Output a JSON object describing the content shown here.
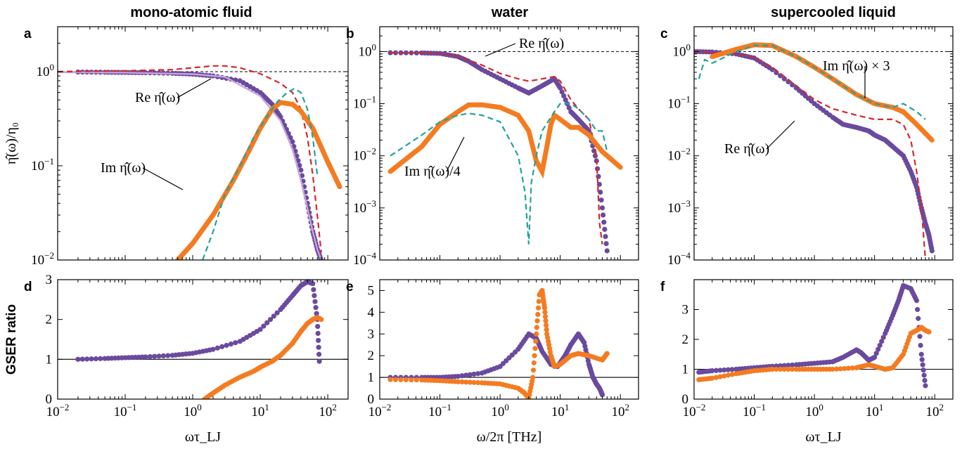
{
  "columns": {
    "a": "mono-atomic fluid",
    "b": "water",
    "c": "supercooled liquid"
  },
  "colors": {
    "re": "#6a4a9e",
    "im": "#f47b20",
    "re_dashed": "#d62728",
    "im_dashed": "#20a39e",
    "re_light": "#c9a6d8",
    "ref_line": "#000000"
  },
  "chart_data": [
    {
      "panel": "a",
      "type": "line",
      "xlog": true,
      "ylog": true,
      "xlim": [
        0.01,
        200
      ],
      "ylim": [
        0.01,
        3
      ],
      "ylabel": "η̂(ω)/η₀",
      "xticks": [
        "10^-2",
        "10^-1",
        "10^0",
        "10^1",
        "10^2"
      ],
      "yticks": [
        "10^-2",
        "10^-1",
        "10^0"
      ],
      "reference_line": {
        "y": 1,
        "style": "dashed"
      },
      "annotations": [
        "Re η̂(ω)",
        "Im η̂(ω)"
      ],
      "series": [
        {
          "key": "re_sim",
          "style": "dots",
          "color": "re",
          "x": [
            0.02,
            0.05,
            0.1,
            0.2,
            0.5,
            1,
            2,
            5,
            10,
            15,
            20,
            30,
            40,
            50,
            60,
            70,
            80
          ],
          "y": [
            0.99,
            0.985,
            0.98,
            0.975,
            0.96,
            0.94,
            0.9,
            0.8,
            0.6,
            0.45,
            0.33,
            0.18,
            0.09,
            0.04,
            0.02,
            0.013,
            0.01
          ]
        },
        {
          "key": "re_fit",
          "style": "line",
          "color": "re_light",
          "x": [
            0.01,
            0.1,
            1,
            3,
            10,
            20,
            30,
            40,
            50,
            60,
            70,
            80
          ],
          "y": [
            0.985,
            0.975,
            0.94,
            0.88,
            0.55,
            0.3,
            0.15,
            0.07,
            0.035,
            0.02,
            0.013,
            0.01
          ]
        },
        {
          "key": "re_dashed",
          "style": "dashed",
          "color": "re_dashed",
          "x": [
            0.01,
            0.1,
            0.5,
            1,
            2,
            3,
            5,
            10,
            20,
            30,
            40,
            50,
            60,
            70,
            80
          ],
          "y": [
            1.0,
            1.02,
            1.05,
            1.1,
            1.15,
            1.15,
            1.1,
            0.95,
            0.75,
            0.6,
            0.4,
            0.2,
            0.08,
            0.03,
            0.012
          ]
        },
        {
          "key": "im_sim",
          "style": "thick",
          "color": "im",
          "x": [
            0.6,
            1,
            2,
            4,
            7,
            10,
            15,
            20,
            30,
            40,
            60,
            100,
            150
          ],
          "y": [
            0.01,
            0.015,
            0.03,
            0.07,
            0.15,
            0.25,
            0.4,
            0.47,
            0.45,
            0.38,
            0.25,
            0.11,
            0.06
          ]
        },
        {
          "key": "im_dashed",
          "style": "dashed",
          "color": "im_dashed",
          "x": [
            1.4,
            2,
            3,
            5,
            8,
            12,
            18,
            25,
            32,
            40,
            50,
            60,
            70
          ],
          "y": [
            0.01,
            0.02,
            0.05,
            0.1,
            0.2,
            0.32,
            0.48,
            0.6,
            0.66,
            0.6,
            0.4,
            0.2,
            0.08
          ]
        }
      ]
    },
    {
      "panel": "b",
      "type": "line",
      "xlog": true,
      "ylog": true,
      "xlim": [
        0.01,
        200
      ],
      "ylim": [
        0.0001,
        3
      ],
      "xlabel": "ω/2π  [THz]",
      "xticks": [
        "10^-2",
        "10^-1",
        "10^0",
        "10^1",
        "10^2"
      ],
      "yticks": [
        "10^-4",
        "10^-3",
        "10^-2",
        "10^-1",
        "10^0"
      ],
      "reference_line": {
        "y": 1,
        "style": "dashed"
      },
      "annotations": [
        "Re η̂(ω)",
        "Im η̂(ω)/4"
      ],
      "series": [
        {
          "key": "re_sim",
          "style": "dots",
          "color": "re",
          "x": [
            0.015,
            0.05,
            0.1,
            0.2,
            0.3,
            0.5,
            1,
            2,
            3,
            5,
            8,
            10,
            15,
            20,
            30,
            40,
            50,
            60
          ],
          "y": [
            0.95,
            0.94,
            0.92,
            0.8,
            0.65,
            0.45,
            0.3,
            0.2,
            0.16,
            0.22,
            0.3,
            0.2,
            0.07,
            0.05,
            0.03,
            0.008,
            0.001,
            0.00015
          ]
        },
        {
          "key": "re_dashed",
          "style": "dashed",
          "color": "re_dashed",
          "x": [
            0.015,
            0.05,
            0.1,
            0.2,
            0.5,
            1,
            2,
            3,
            5,
            8,
            10,
            15,
            20,
            30,
            40,
            45,
            50
          ],
          "y": [
            0.95,
            0.94,
            0.92,
            0.82,
            0.55,
            0.38,
            0.3,
            0.27,
            0.3,
            0.33,
            0.27,
            0.12,
            0.08,
            0.05,
            0.01,
            0.0005,
            0.0002
          ]
        },
        {
          "key": "im_sim",
          "style": "thick",
          "color": "im",
          "x": [
            0.015,
            0.05,
            0.1,
            0.2,
            0.3,
            0.5,
            1,
            2,
            3,
            4,
            5,
            6,
            7,
            8,
            10,
            15,
            20,
            30,
            50,
            100
          ],
          "y": [
            0.005,
            0.015,
            0.04,
            0.07,
            0.095,
            0.095,
            0.085,
            0.06,
            0.03,
            0.008,
            0.005,
            0.015,
            0.04,
            0.06,
            0.05,
            0.035,
            0.035,
            0.025,
            0.012,
            0.006
          ]
        },
        {
          "key": "im_dashed",
          "style": "dashed",
          "color": "im_dashed",
          "x": [
            0.015,
            0.05,
            0.1,
            0.2,
            0.3,
            0.5,
            1,
            2,
            2.6,
            3,
            3.3,
            4,
            5,
            8,
            10,
            15,
            20,
            30,
            40,
            50,
            60
          ],
          "y": [
            0.01,
            0.025,
            0.045,
            0.06,
            0.065,
            0.06,
            0.045,
            0.01,
            0.002,
            0.0002,
            0.003,
            0.01,
            0.03,
            0.07,
            0.1,
            0.1,
            0.08,
            0.05,
            0.03,
            0.03,
            0.012
          ]
        }
      ]
    },
    {
      "panel": "c",
      "type": "line",
      "xlog": true,
      "ylog": true,
      "xlim": [
        0.01,
        200
      ],
      "ylim": [
        0.0001,
        3
      ],
      "xticks": [
        "10^-2",
        "10^-1",
        "10^0",
        "10^1",
        "10^2"
      ],
      "yticks": [
        "10^-4",
        "10^-3",
        "10^-2",
        "10^-1",
        "10^0"
      ],
      "reference_line": {
        "y": 1,
        "style": "dashed"
      },
      "annotations": [
        "Im η̂(ω) × 3",
        "Re η̂(ω)"
      ],
      "series": [
        {
          "key": "re_sim",
          "style": "dots",
          "color": "re",
          "x": [
            0.01,
            0.02,
            0.05,
            0.1,
            0.2,
            0.5,
            1,
            2,
            3,
            5,
            8,
            10,
            15,
            20,
            30,
            40,
            50,
            60,
            70,
            80,
            90
          ],
          "y": [
            1.0,
            0.98,
            0.9,
            0.75,
            0.45,
            0.2,
            0.1,
            0.055,
            0.04,
            0.035,
            0.03,
            0.025,
            0.02,
            0.015,
            0.01,
            0.005,
            0.0025,
            0.001,
            0.0005,
            0.0003,
            0.00015
          ]
        },
        {
          "key": "re_dashed",
          "style": "dashed",
          "color": "re_dashed",
          "x": [
            0.01,
            0.05,
            0.1,
            0.2,
            0.5,
            1,
            2,
            5,
            10,
            20,
            30,
            40,
            50,
            60,
            70
          ],
          "y": [
            1.0,
            0.9,
            0.78,
            0.5,
            0.22,
            0.12,
            0.08,
            0.06,
            0.05,
            0.05,
            0.04,
            0.02,
            0.005,
            0.001,
            0.0001
          ]
        },
        {
          "key": "im_sim",
          "style": "thick",
          "color": "im",
          "x": [
            0.02,
            0.05,
            0.1,
            0.2,
            0.5,
            1,
            2,
            5,
            10,
            20,
            30,
            50,
            90
          ],
          "y": [
            0.8,
            1.1,
            1.35,
            1.3,
            0.8,
            0.5,
            0.3,
            0.15,
            0.1,
            0.085,
            0.07,
            0.04,
            0.02
          ]
        },
        {
          "key": "im_dashed",
          "style": "dashed",
          "color": "im_dashed",
          "x": [
            0.012,
            0.015,
            0.02,
            0.05,
            0.1,
            0.2,
            0.5,
            1,
            2,
            5,
            10,
            20,
            30,
            50,
            70
          ],
          "y": [
            0.3,
            0.7,
            0.6,
            1.0,
            1.3,
            1.3,
            0.8,
            0.5,
            0.3,
            0.15,
            0.1,
            0.085,
            0.1,
            0.07,
            0.05
          ]
        }
      ]
    },
    {
      "panel": "d",
      "type": "scatter",
      "xlog": true,
      "xlim": [
        0.01,
        200
      ],
      "ylim": [
        0,
        3
      ],
      "ylabel": "GSER ratio",
      "xlabel": "ωτ_LJ",
      "xticks": [
        "10^-2",
        "10^-1",
        "10^0",
        "10^1",
        "10^2"
      ],
      "yticks": [
        "0",
        "1",
        "2",
        "3"
      ],
      "reference_line": {
        "y": 1,
        "style": "solid"
      },
      "series": [
        {
          "key": "re_sim",
          "color": "re",
          "x": [
            0.02,
            0.05,
            0.1,
            0.2,
            0.5,
            1,
            2,
            5,
            10,
            20,
            30,
            40,
            50,
            60,
            70,
            75
          ],
          "y": [
            1.0,
            1.02,
            1.04,
            1.06,
            1.1,
            1.15,
            1.25,
            1.45,
            1.75,
            2.25,
            2.6,
            2.85,
            2.95,
            2.9,
            2.0,
            0.95
          ]
        },
        {
          "key": "im_sim",
          "color": "im",
          "x": [
            1.5,
            2,
            3,
            5,
            8,
            10,
            15,
            20,
            30,
            40,
            50,
            60,
            70,
            80
          ],
          "y": [
            0.0,
            0.15,
            0.35,
            0.55,
            0.7,
            0.8,
            0.95,
            1.1,
            1.4,
            1.7,
            1.9,
            2.0,
            2.05,
            2.0
          ]
        }
      ]
    },
    {
      "panel": "e",
      "type": "scatter",
      "xlog": true,
      "xlim": [
        0.01,
        200
      ],
      "ylim": [
        0,
        5.5
      ],
      "xlabel": "ω/2π  [THz]",
      "xticks": [
        "10^-2",
        "10^-1",
        "10^0",
        "10^1",
        "10^2"
      ],
      "yticks": [
        "0",
        "1",
        "2",
        "3",
        "4",
        "5"
      ],
      "reference_line": {
        "y": 1,
        "style": "solid"
      },
      "series": [
        {
          "key": "re_sim",
          "color": "re",
          "x": [
            0.015,
            0.05,
            0.1,
            0.2,
            0.5,
            1,
            2,
            3,
            4,
            5,
            7,
            9,
            12,
            15,
            20,
            25,
            30,
            35,
            40,
            45,
            50
          ],
          "y": [
            1.0,
            1.0,
            1.0,
            1.05,
            1.2,
            1.5,
            2.3,
            3.0,
            2.8,
            2.2,
            1.6,
            1.5,
            2.0,
            2.5,
            3.0,
            2.6,
            1.6,
            1.0,
            0.7,
            0.5,
            0.2
          ]
        },
        {
          "key": "im_sim",
          "color": "im",
          "x": [
            0.015,
            0.05,
            0.1,
            0.2,
            0.5,
            1,
            2,
            2.5,
            3,
            3.5,
            4,
            4.5,
            5,
            5.5,
            6,
            7,
            8,
            10,
            15,
            20,
            30,
            50,
            60
          ],
          "y": [
            0.9,
            0.88,
            0.85,
            0.8,
            0.75,
            0.7,
            0.5,
            0.3,
            0.05,
            1.0,
            3.0,
            4.8,
            5.0,
            4.2,
            3.0,
            2.0,
            1.5,
            1.6,
            2.0,
            2.1,
            2.0,
            1.8,
            2.1
          ]
        }
      ]
    },
    {
      "panel": "f",
      "type": "scatter",
      "xlog": true,
      "xlim": [
        0.01,
        200
      ],
      "ylim": [
        0,
        4
      ],
      "xlabel": "ωτ_LJ",
      "xticks": [
        "10^-2",
        "10^-1",
        "10^0",
        "10^1",
        "10^2"
      ],
      "yticks": [
        "0",
        "1",
        "2",
        "3"
      ],
      "reference_line": {
        "y": 1,
        "style": "solid"
      },
      "series": [
        {
          "key": "re_sim",
          "color": "re",
          "x": [
            0.012,
            0.02,
            0.05,
            0.1,
            0.2,
            0.5,
            1,
            2,
            3,
            5,
            6,
            8,
            10,
            15,
            20,
            25,
            30,
            40,
            50,
            60,
            70
          ],
          "y": [
            0.9,
            0.95,
            1.0,
            1.05,
            1.1,
            1.15,
            1.2,
            1.25,
            1.4,
            1.65,
            1.55,
            1.3,
            1.4,
            2.2,
            2.8,
            3.3,
            3.8,
            3.7,
            3.3,
            1.5,
            0.45
          ]
        },
        {
          "key": "im_sim",
          "color": "im",
          "x": [
            0.012,
            0.02,
            0.05,
            0.1,
            0.2,
            0.5,
            1,
            2,
            5,
            8,
            10,
            15,
            20,
            30,
            40,
            50,
            60,
            70,
            80
          ],
          "y": [
            0.65,
            0.7,
            0.85,
            0.95,
            1.0,
            1.0,
            1.0,
            1.0,
            1.05,
            1.15,
            1.1,
            1.0,
            1.05,
            1.5,
            2.2,
            2.3,
            2.4,
            2.3,
            2.25
          ]
        }
      ]
    }
  ]
}
